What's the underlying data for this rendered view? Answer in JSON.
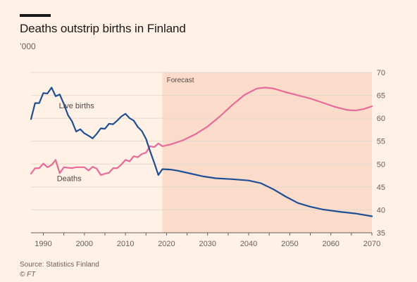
{
  "header": {
    "title": "Deaths outstrip births in Finland",
    "subtitle": "’000"
  },
  "footer": {
    "source": "Source: Statistics Finland",
    "credit": "© FT"
  },
  "colors": {
    "background": "#fff1e5",
    "forecast_band": "#fbdccb",
    "births": "#1e4f96",
    "deaths": "#e66b99",
    "grid": "#e4d8cc"
  },
  "chart_data": {
    "type": "line",
    "title": "Deaths outstrip births in Finland",
    "subtitle": "’000",
    "xlabel": "",
    "ylabel": "’000",
    "xlim": [
      1987,
      2070
    ],
    "ylim": [
      35,
      70
    ],
    "xticks": [
      1990,
      2000,
      2010,
      2020,
      2030,
      2040,
      2050,
      2060,
      2070
    ],
    "yticks": [
      35,
      40,
      45,
      50,
      55,
      60,
      65,
      70
    ],
    "y_axis_position": "right",
    "grid": true,
    "forecast": {
      "label": "Forecast",
      "start": 2019,
      "end": 2070
    },
    "series": [
      {
        "name": "Live births",
        "points": [
          [
            1987,
            59.8
          ],
          [
            1988,
            63.3
          ],
          [
            1989,
            63.3
          ],
          [
            1990,
            65.5
          ],
          [
            1991,
            65.4
          ],
          [
            1992,
            66.7
          ],
          [
            1993,
            64.8
          ],
          [
            1994,
            65.2
          ],
          [
            1995,
            63.1
          ],
          [
            1996,
            60.7
          ],
          [
            1997,
            59.3
          ],
          [
            1998,
            57.1
          ],
          [
            1999,
            57.6
          ],
          [
            2000,
            56.7
          ],
          [
            2001,
            56.2
          ],
          [
            2002,
            55.6
          ],
          [
            2003,
            56.6
          ],
          [
            2004,
            57.8
          ],
          [
            2005,
            57.7
          ],
          [
            2006,
            58.8
          ],
          [
            2007,
            58.7
          ],
          [
            2008,
            59.5
          ],
          [
            2009,
            60.4
          ],
          [
            2010,
            60.98
          ],
          [
            2011,
            60.0
          ],
          [
            2012,
            59.5
          ],
          [
            2013,
            58.1
          ],
          [
            2014,
            57.2
          ],
          [
            2015,
            55.5
          ],
          [
            2016,
            52.8
          ],
          [
            2017,
            50.3
          ],
          [
            2018,
            47.6
          ],
          [
            2019,
            48.9
          ],
          [
            2021,
            48.8
          ],
          [
            2023,
            48.5
          ],
          [
            2026,
            47.9
          ],
          [
            2029,
            47.3
          ],
          [
            2032,
            46.9
          ],
          [
            2036,
            46.7
          ],
          [
            2040,
            46.4
          ],
          [
            2043,
            45.8
          ],
          [
            2046,
            44.5
          ],
          [
            2049,
            42.9
          ],
          [
            2052,
            41.5
          ],
          [
            2055,
            40.7
          ],
          [
            2058,
            40.1
          ],
          [
            2062,
            39.6
          ],
          [
            2066,
            39.2
          ],
          [
            2070,
            38.6
          ]
        ]
      },
      {
        "name": "Deaths",
        "points": [
          [
            1987,
            47.9
          ],
          [
            1988,
            49.1
          ],
          [
            1989,
            49.1
          ],
          [
            1990,
            50.1
          ],
          [
            1991,
            49.3
          ],
          [
            1992,
            49.8
          ],
          [
            1993,
            50.9
          ],
          [
            1994,
            48.0
          ],
          [
            1995,
            49.3
          ],
          [
            1996,
            49.2
          ],
          [
            1997,
            49.1
          ],
          [
            1998,
            49.3
          ],
          [
            1999,
            49.3
          ],
          [
            2000,
            49.3
          ],
          [
            2001,
            48.6
          ],
          [
            2002,
            49.4
          ],
          [
            2003,
            49.0
          ],
          [
            2004,
            47.6
          ],
          [
            2005,
            47.9
          ],
          [
            2006,
            48.1
          ],
          [
            2007,
            49.1
          ],
          [
            2008,
            49.1
          ],
          [
            2009,
            49.9
          ],
          [
            2010,
            50.9
          ],
          [
            2011,
            50.6
          ],
          [
            2012,
            51.7
          ],
          [
            2013,
            51.5
          ],
          [
            2014,
            52.2
          ],
          [
            2015,
            52.5
          ],
          [
            2016,
            53.9
          ],
          [
            2017,
            53.7
          ],
          [
            2018,
            54.5
          ],
          [
            2019,
            53.9
          ],
          [
            2021,
            54.3
          ],
          [
            2024,
            55.2
          ],
          [
            2027,
            56.5
          ],
          [
            2030,
            58.2
          ],
          [
            2033,
            60.4
          ],
          [
            2036,
            62.9
          ],
          [
            2039,
            65.1
          ],
          [
            2042,
            66.5
          ],
          [
            2044,
            66.7
          ],
          [
            2046,
            66.5
          ],
          [
            2049,
            65.7
          ],
          [
            2052,
            65.0
          ],
          [
            2055,
            64.3
          ],
          [
            2058,
            63.4
          ],
          [
            2061,
            62.5
          ],
          [
            2064,
            61.8
          ],
          [
            2066,
            61.7
          ],
          [
            2068,
            62.0
          ],
          [
            2070,
            62.6
          ]
        ]
      }
    ],
    "series_labels": [
      {
        "series": "Live births",
        "text": "Live births",
        "x": 1993.8,
        "y": 62.2
      },
      {
        "series": "Deaths",
        "text": "Deaths",
        "x": 1993.3,
        "y": 46.3
      }
    ]
  }
}
